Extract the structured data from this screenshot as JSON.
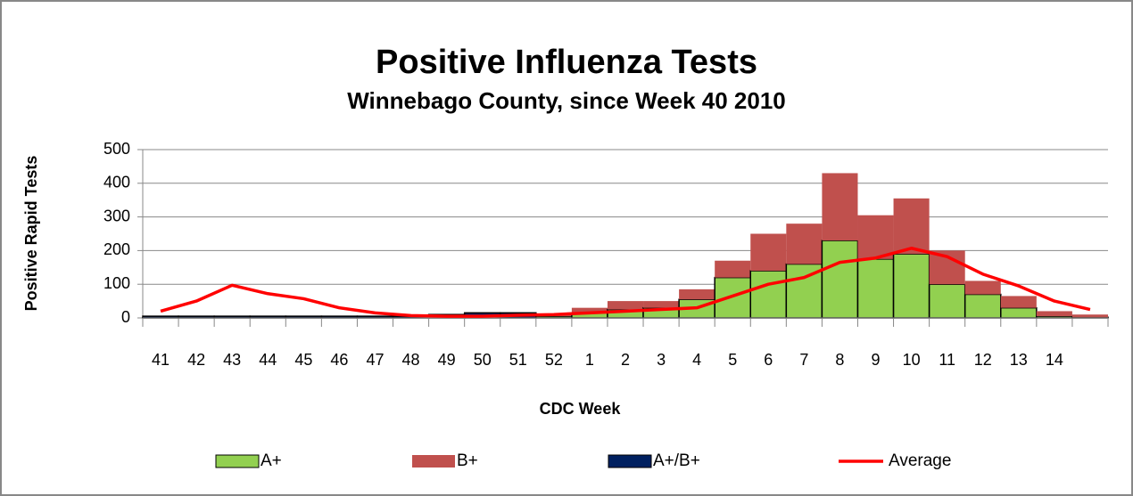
{
  "chart_data": {
    "type": "bar",
    "stacked": true,
    "title": "Positive Influenza Tests",
    "subtitle": "Winnebago County, since Week 40 2010",
    "x_label": "CDC Week",
    "y_label": "Positive Rapid Tests",
    "categories": [
      "41",
      "42",
      "43",
      "44",
      "45",
      "46",
      "47",
      "48",
      "49",
      "50",
      "51",
      "52",
      "1",
      "2",
      "3",
      "4",
      "5",
      "6",
      "7",
      "8",
      "9",
      "10",
      "11",
      "12",
      "13",
      "14",
      null
    ],
    "series": [
      {
        "name": "A+",
        "color": "#92d050",
        "values": [
          0,
          0,
          0,
          0,
          0,
          0,
          0,
          0,
          0,
          0,
          0,
          5,
          15,
          25,
          30,
          55,
          120,
          140,
          160,
          230,
          175,
          190,
          100,
          70,
          30,
          5,
          2
        ]
      },
      {
        "name": "B+",
        "color": "#c0504d",
        "values": [
          0,
          0,
          0,
          0,
          0,
          0,
          0,
          0,
          0,
          0,
          0,
          8,
          15,
          25,
          20,
          30,
          50,
          110,
          120,
          200,
          130,
          165,
          100,
          40,
          35,
          15,
          8
        ]
      },
      {
        "name": "A+/B+",
        "color": "#002060",
        "values": [
          5,
          5,
          5,
          5,
          5,
          5,
          5,
          5,
          10,
          15,
          15,
          0,
          0,
          0,
          0,
          0,
          0,
          0,
          0,
          0,
          0,
          0,
          0,
          0,
          0,
          0,
          0
        ]
      },
      {
        "name": "Average",
        "type": "line",
        "color": "#ff0000",
        "values": [
          20,
          50,
          97,
          72,
          57,
          30,
          15,
          7,
          5,
          5,
          8,
          10,
          15,
          20,
          25,
          30,
          65,
          100,
          120,
          165,
          178,
          207,
          182,
          130,
          95,
          50,
          25
        ]
      }
    ],
    "ylim": [
      0,
      500
    ],
    "yticks": [
      0,
      100,
      200,
      300,
      400,
      500
    ],
    "grid": true,
    "legend": "bottom"
  }
}
